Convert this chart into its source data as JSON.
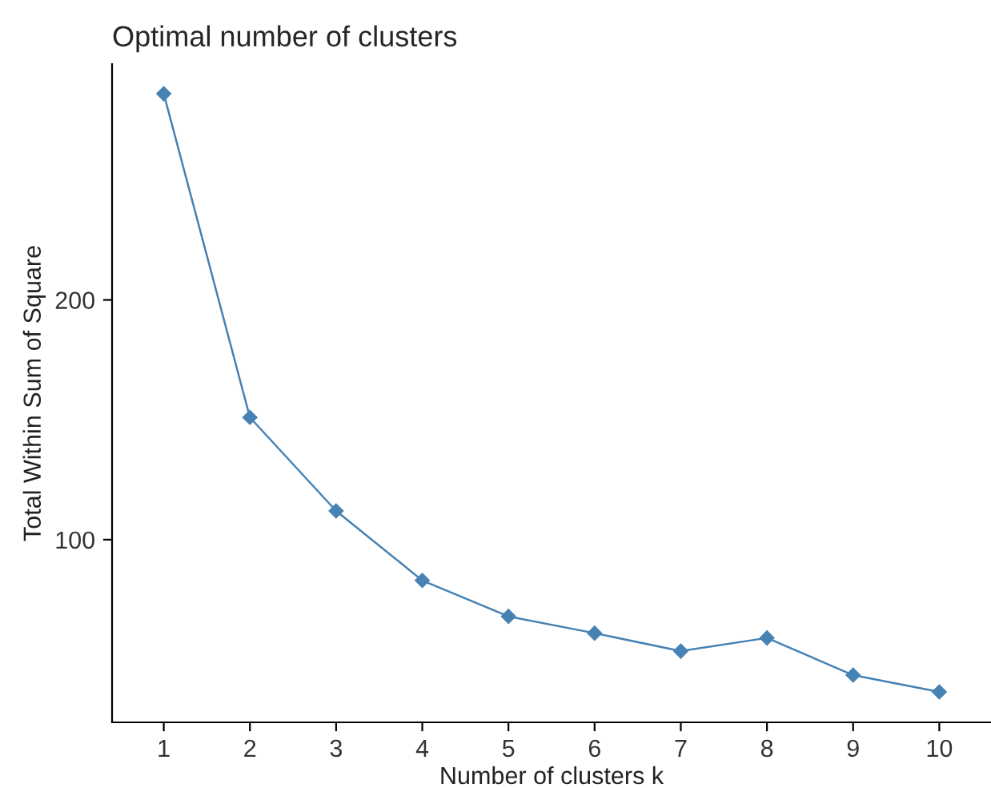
{
  "chart_data": {
    "type": "line",
    "title": "Optimal number of clusters",
    "xlabel": "Number of clusters k",
    "ylabel": "Total Within Sum of Square",
    "categories": [
      "1",
      "2",
      "3",
      "4",
      "5",
      "6",
      "7",
      "8",
      "9",
      "10"
    ],
    "series": [
      {
        "color": "#4682b4",
        "values": [
          286,
          151,
          112,
          83,
          68,
          61,
          53.5,
          59,
          43.5,
          36.5
        ]
      }
    ],
    "ylim": [
      23.8,
      298.4
    ],
    "yticks": [
      100,
      200
    ],
    "grid": false,
    "marker": "diamond",
    "line_style": "solid"
  }
}
